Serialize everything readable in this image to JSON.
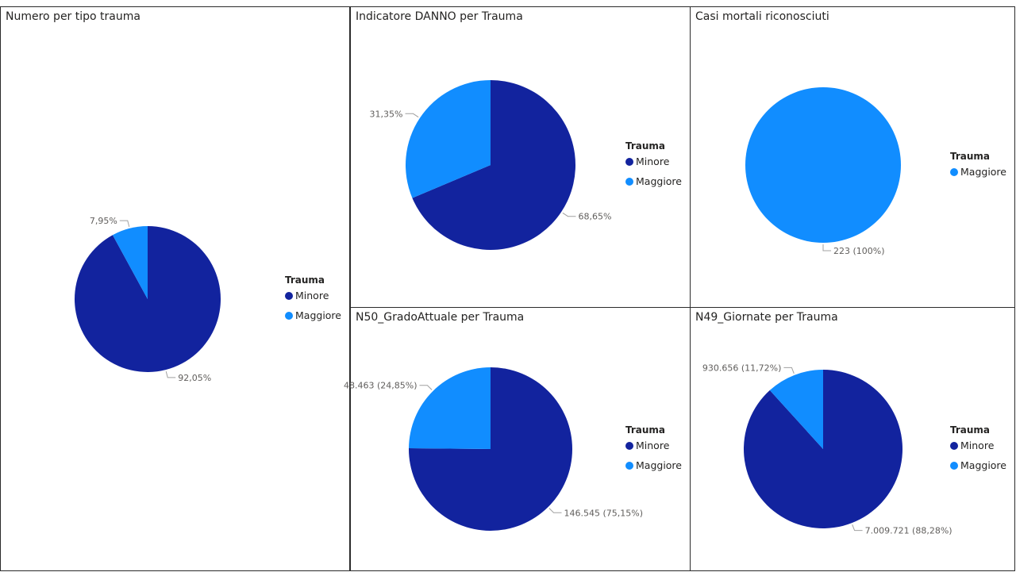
{
  "legend": {
    "title": "Trauma",
    "minore": "Minore",
    "maggiore": "Maggiore"
  },
  "colors": {
    "Minore": "#12239E",
    "Maggiore": "#118DFF",
    "label_text": "#605E5C",
    "leader_line": "#A0A0A0"
  },
  "panels": {
    "p1": {
      "title": "Numero per tipo trauma"
    },
    "p2": {
      "title": "Indicatore DANNO per Trauma"
    },
    "p3": {
      "title": "Casi mortali riconosciuti"
    },
    "p4": {
      "title": "N50_GradoAttuale per Trauma"
    },
    "p5": {
      "title": "N49_Giornate per Trauma"
    }
  },
  "chart_data": [
    {
      "type": "pie",
      "title": "Numero per tipo trauma",
      "legend_title": "Trauma",
      "legend_position": "right",
      "slices": [
        {
          "name": "Minore",
          "percent": 92.05,
          "label": "92,05%"
        },
        {
          "name": "Maggiore",
          "percent": 7.95,
          "label": "7,95%"
        }
      ]
    },
    {
      "type": "pie",
      "title": "Indicatore DANNO per Trauma",
      "legend_title": "Trauma",
      "legend_position": "right",
      "slices": [
        {
          "name": "Minore",
          "percent": 68.65,
          "label": "68,65%"
        },
        {
          "name": "Maggiore",
          "percent": 31.35,
          "label": "31,35%"
        }
      ]
    },
    {
      "type": "pie",
      "title": "Casi mortali riconosciuti",
      "legend_title": "Trauma",
      "legend_position": "right",
      "slices": [
        {
          "name": "Maggiore",
          "value": 223,
          "percent": 100,
          "label": "223 (100%)"
        }
      ]
    },
    {
      "type": "pie",
      "title": "N50_GradoAttuale per Trauma",
      "legend_title": "Trauma",
      "legend_position": "right",
      "slices": [
        {
          "name": "Minore",
          "value": 146545,
          "percent": 75.15,
          "label": "146.545 (75,15%)"
        },
        {
          "name": "Maggiore",
          "value": 48463,
          "percent": 24.85,
          "label": "48.463 (24,85%)"
        }
      ]
    },
    {
      "type": "pie",
      "title": "N49_Giornate per Trauma",
      "legend_title": "Trauma",
      "legend_position": "right",
      "slices": [
        {
          "name": "Minore",
          "value": 7009721,
          "percent": 88.28,
          "label": "7.009.721 (88,28%)"
        },
        {
          "name": "Maggiore",
          "value": 930656,
          "percent": 11.72,
          "label": "930.656 (11,72%)"
        }
      ]
    }
  ]
}
